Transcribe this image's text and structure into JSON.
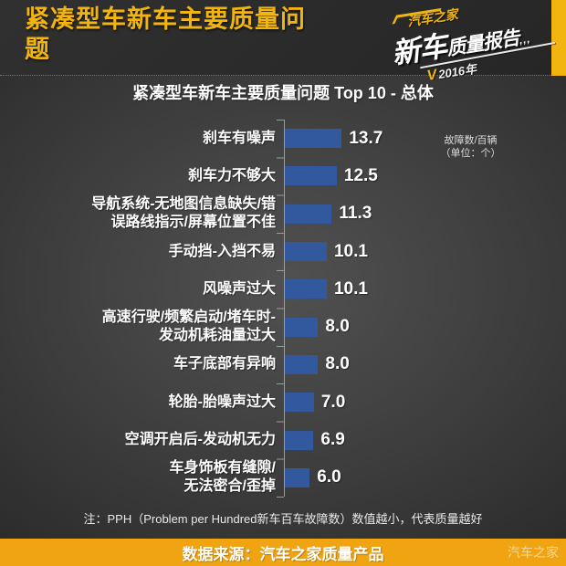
{
  "header": {
    "title": "紧凑型车新车主要质量问题"
  },
  "logo": {
    "brand": "汽车之家",
    "main": "新车",
    "sub": "质量报告",
    "dots": ",,,",
    "vmark": "V",
    "year": "2016年",
    "accent_color": "#F2B50F"
  },
  "chart": {
    "title": "紧凑型车新车主要质量问题 Top 10 - 总体",
    "unit_note_line1": "故障数/百辆",
    "unit_note_line2": "（单位：个）"
  },
  "chart_data": {
    "type": "bar",
    "orientation": "horizontal",
    "title": "紧凑型车新车主要质量问题 Top 10 - 总体",
    "categories": [
      "刹车有噪声",
      "刹车力不够大",
      "导航系统-无地图信息缺失/错\n误路线指示/屏幕位置不佳",
      "手动挡-入挡不易",
      "风噪声过大",
      "高速行驶/频繁启动/堵车时-\n发动机耗油量过大",
      "车子底部有异响",
      "轮胎-胎噪声过大",
      "空调开启后-发动机无力",
      "车身饰板有缝隙/\n无法密合/歪掉"
    ],
    "values": [
      13.7,
      12.5,
      11.3,
      10.1,
      10.1,
      8.0,
      8.0,
      7.0,
      6.9,
      6.0
    ],
    "value_labels": [
      "13.7",
      "12.5",
      "11.3",
      "10.1",
      "10.1",
      "8.0",
      "8.0",
      "7.0",
      "6.9",
      "6.0"
    ],
    "unit": "故障数/百辆（单位：个）",
    "xlim": [
      0,
      14
    ],
    "bar_color": "#32589E",
    "legend_position": "none",
    "grid": false
  },
  "note": "注：PPH（Problem per Hundred新车百车故障数）数值越小，代表质量越好",
  "footer": {
    "source": "数据来源：汽车之家质量产品",
    "watermark": "汽车之家",
    "bg_color": "#F0A411"
  }
}
